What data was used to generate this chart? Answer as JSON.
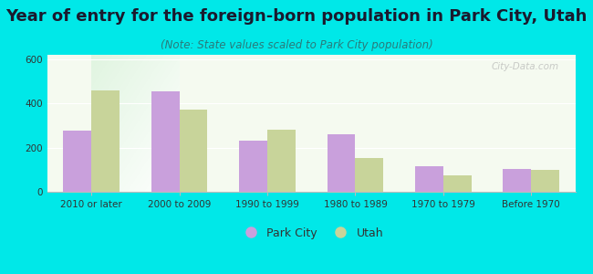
{
  "title": "Year of entry for the foreign-born population in Park City, Utah",
  "subtitle": "(Note: State values scaled to Park City population)",
  "categories": [
    "2010 or later",
    "2000 to 2009",
    "1990 to 1999",
    "1980 to 1989",
    "1970 to 1979",
    "Before 1970"
  ],
  "park_city_values": [
    275,
    455,
    230,
    260,
    115,
    105
  ],
  "utah_values": [
    460,
    370,
    280,
    155,
    75,
    100
  ],
  "park_city_color": "#c9a0dc",
  "utah_color": "#c8d49a",
  "ylim": [
    0,
    620
  ],
  "yticks": [
    0,
    200,
    400,
    600
  ],
  "outer_background": "#00e8e8",
  "bar_width": 0.32,
  "title_fontsize": 13,
  "subtitle_fontsize": 8.5,
  "tick_fontsize": 7.5,
  "legend_fontsize": 9,
  "title_color": "#1a1a2e",
  "subtitle_color": "#2a7a7a",
  "tick_color": "#333333"
}
